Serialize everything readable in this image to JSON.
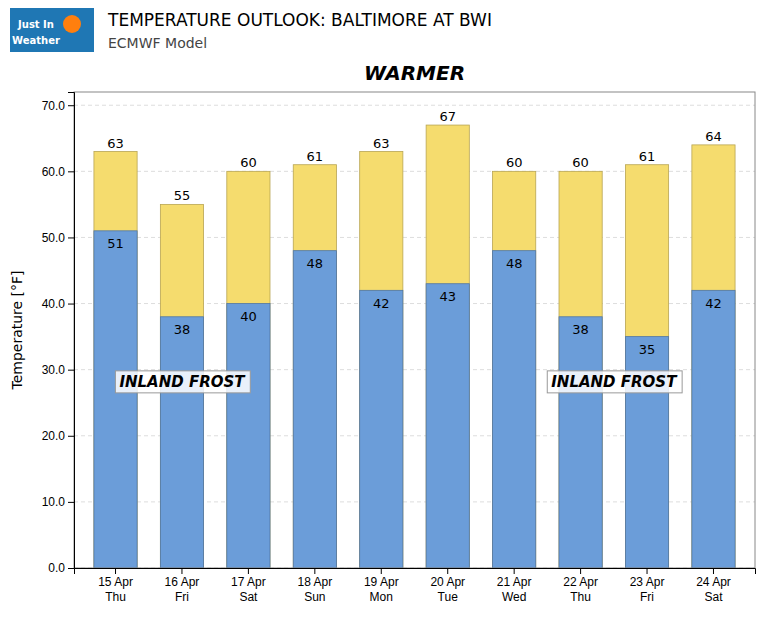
{
  "chart_data": {
    "type": "bar",
    "title": "TEMPERATURE OUTLOOK: BALTIMORE AT BWI",
    "subtitle": "ECMWF Model",
    "ylabel": "Temperature [°F]",
    "categories": [
      "15 Apr\nThu",
      "16 Apr\nFri",
      "17 Apr\nSat",
      "18 Apr\nSun",
      "19 Apr\nMon",
      "20 Apr\nTue",
      "21 Apr\nWed",
      "22 Apr\nThu",
      "23 Apr\nFri",
      "24 Apr\nSat"
    ],
    "series": [
      {
        "color": "#f5dc6e",
        "values": [
          63,
          55,
          60,
          61,
          63,
          67,
          60,
          60,
          61,
          64
        ]
      },
      {
        "color": "#6b9dd9",
        "values": [
          51,
          38,
          40,
          48,
          42,
          43,
          48,
          38,
          35,
          42
        ]
      }
    ],
    "stacked": false,
    "data_labels": true,
    "ylim": [
      0.0,
      72.0
    ],
    "yticks": [
      {
        "value": 0,
        "label": "0.0"
      },
      {
        "value": 10,
        "label": "10.0"
      },
      {
        "value": 20,
        "label": "20.0"
      },
      {
        "value": 30,
        "label": "30.0"
      },
      {
        "value": 40,
        "label": "40.0"
      },
      {
        "value": 50,
        "label": "50.0"
      },
      {
        "value": 60,
        "label": "60.0"
      },
      {
        "value": 70,
        "label": "70.0"
      }
    ],
    "grid": true,
    "annotations": [
      "Just In",
      "Weather",
      "WARMER",
      "INLAND FROST",
      "INLAND FROST"
    ]
  }
}
